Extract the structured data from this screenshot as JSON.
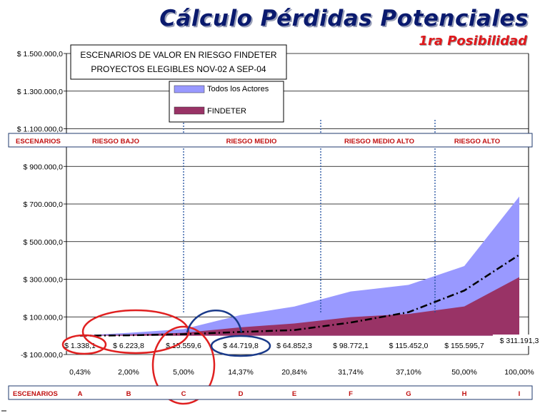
{
  "header": {
    "title": "Cálculo Pérdidas Potenciales",
    "subtitle": "1ra Posibilidad"
  },
  "inset": {
    "line1": "ESCENARIOS DE VALOR EN RIESGO FINDETER",
    "line2": "PROYECTOS ELEGIBLES NOV-02 A SEP-04"
  },
  "risk_band": {
    "label": "ESCENARIOS",
    "zones": [
      "RIESGO BAJO",
      "RIESGO MEDIO",
      "RIESGO MEDIO ALTO",
      "RIESGO ALTO"
    ]
  },
  "bottom_band": {
    "label": "ESCENARIOS"
  },
  "chart_data": {
    "type": "area",
    "categories": [
      "A",
      "B",
      "C",
      "D",
      "E",
      "F",
      "G",
      "H",
      "I"
    ],
    "x_percent_labels": [
      "0,43%",
      "2,00%",
      "5,00%",
      "14,37%",
      "20,84%",
      "31,74%",
      "37,10%",
      "50,00%",
      "100,00%"
    ],
    "series": [
      {
        "name": "Todos los Actores",
        "color": "#9999ff",
        "values": [
          1338.1,
          15000,
          35000,
          110000,
          155000,
          235000,
          270000,
          370000,
          740000
        ]
      },
      {
        "name": "FINDETER",
        "color": "#993366",
        "values": [
          1338.1,
          6223.8,
          15559.6,
          44719.8,
          64852.3,
          98772.1,
          115452.0,
          155595.7,
          311191.3
        ]
      },
      {
        "name": "",
        "style": "dash-dot",
        "color": "#000000",
        "values": [
          0,
          2000,
          8000,
          20000,
          30000,
          70000,
          125000,
          240000,
          430000
        ]
      }
    ],
    "data_labels": [
      "$ 1.338,1",
      "$ 6.223,8",
      "$ 15.559,6",
      "$ 44.719,8",
      "$ 64.852,3",
      "$ 98.772,1",
      "$ 115.452,0",
      "$ 155.595,7",
      "$ 311.191,3"
    ],
    "y_ticks": [
      -100000,
      100000,
      300000,
      500000,
      700000,
      900000,
      1100000,
      1300000,
      1500000
    ],
    "y_tick_labels": [
      "-$ 100.000,0",
      "$ 100.000,0",
      "$ 300.000,0",
      "$ 500.000,0",
      "$ 700.000,0",
      "$ 900.000,0",
      "$ 1.100.000,0",
      "$ 1.300.000,0",
      "$ 1.500.000,0"
    ],
    "ylim": [
      -100000,
      1500000
    ],
    "grid": true,
    "legend_position": "top-center",
    "highlight_colors": {
      "red": "#e02020",
      "blue": "#1a3a8a"
    }
  }
}
